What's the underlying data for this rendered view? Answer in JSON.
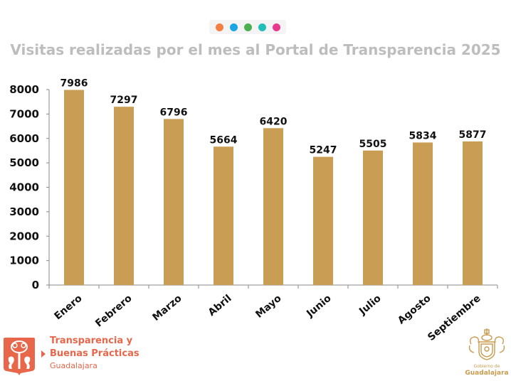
{
  "header": {
    "dots": [
      {
        "name": "orange-dot",
        "color": "#f47f44"
      },
      {
        "name": "blue-dot",
        "color": "#1aa6e4"
      },
      {
        "name": "green-dot",
        "color": "#4caf50"
      },
      {
        "name": "teal-dot",
        "color": "#1fbfb8"
      },
      {
        "name": "pink-dot",
        "color": "#e8398e"
      }
    ]
  },
  "colors": {
    "bar": "#c99e54",
    "axis": "#8a8a8a",
    "title": "#bdbdbd",
    "brand": "#e8664a",
    "gold": "#c89b4e"
  },
  "chart_data": {
    "type": "bar",
    "title": "Visitas realizadas por el mes al Portal de Transparencia 2025",
    "xlabel": "",
    "ylabel": "",
    "categories": [
      "Enero",
      "Febrero",
      "Marzo",
      "Abril",
      "Mayo",
      "Junio",
      "Julio",
      "Agosto",
      "Septiembre"
    ],
    "values": [
      7986,
      7297,
      6796,
      5664,
      6420,
      5247,
      5505,
      5834,
      5877
    ],
    "ylim": [
      0,
      8000
    ],
    "yticks": [
      0,
      1000,
      2000,
      3000,
      4000,
      5000,
      6000,
      7000,
      8000
    ],
    "data_labels": true,
    "grid": false,
    "legend": "none"
  },
  "footer": {
    "brand_line1": "Transparencia y",
    "brand_line2": "Buenas Prácticas",
    "brand_sub": "Guadalajara",
    "gov_small": "Gobierno de",
    "gov_big": "Guadalajara"
  }
}
